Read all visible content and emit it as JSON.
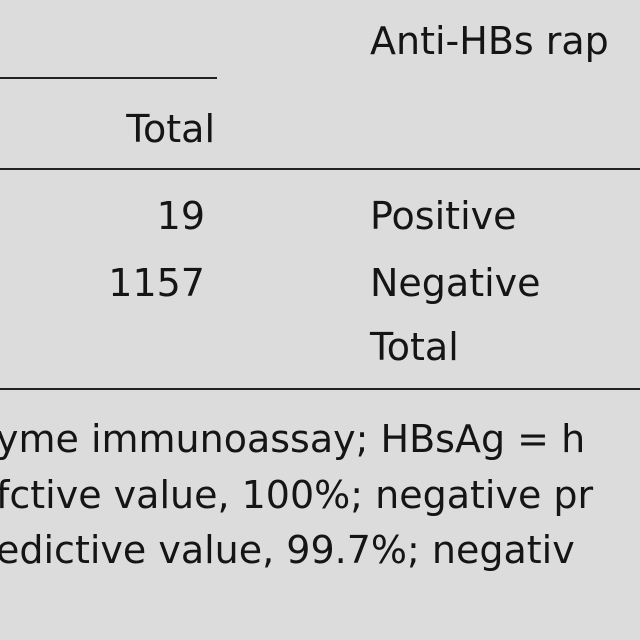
{
  "table": {
    "group_header": "Anti-HBs rap",
    "header": [
      "Total"
    ],
    "rows": [
      [
        "19",
        "Positive"
      ],
      [
        "1157",
        "Negative"
      ],
      [
        null,
        "Total"
      ]
    ]
  },
  "footnote": [
    "yme immunoassay; HBsAg = h",
    "fctive value, 100%; negative pr",
    "edictive value, 99.7%; negativ"
  ]
}
